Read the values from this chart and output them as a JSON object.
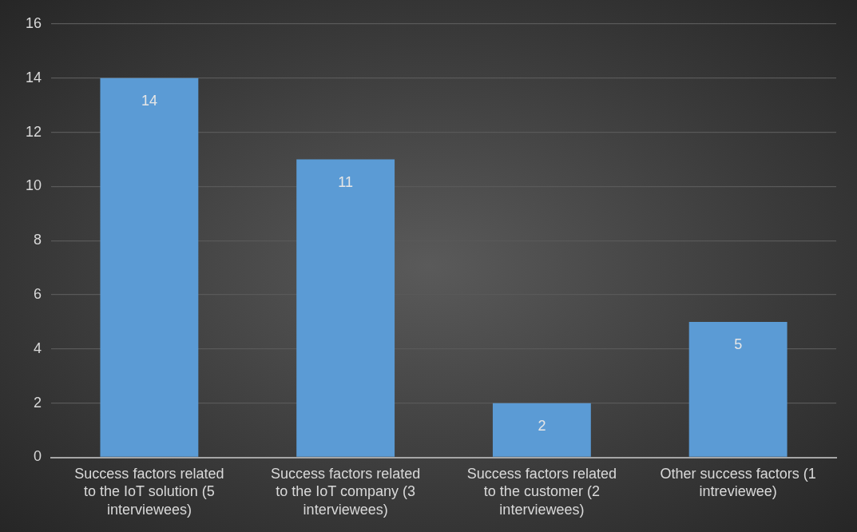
{
  "chart_data": {
    "type": "bar",
    "categories": [
      "Success factors related to the IoT solution (5 interviewees)",
      "Success factors related to the IoT company (3 interviewees)",
      "Success factors related to the customer (2 interviewees)",
      "Other success factors (1 intreviewee)"
    ],
    "values": [
      14,
      11,
      2,
      5
    ],
    "color": "#5b9bd5",
    "ylim": [
      0,
      16
    ],
    "yticks": [
      0,
      2,
      4,
      6,
      8,
      10,
      12,
      14,
      16
    ],
    "grid": "y",
    "data_labels": true
  }
}
